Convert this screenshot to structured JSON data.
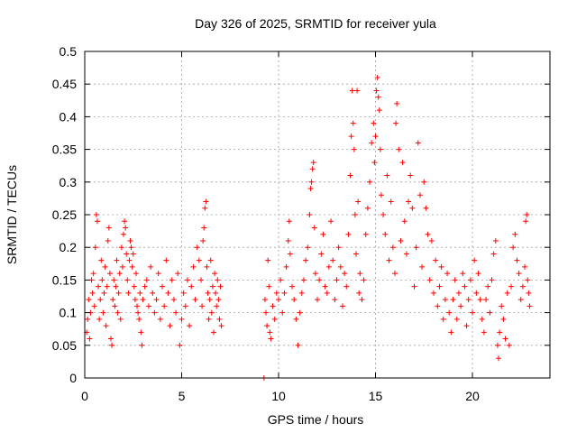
{
  "chart_data": {
    "type": "scatter",
    "title": "Day 326 of 2025, SRMTID for receiver yula",
    "xlabel": "GPS time / hours",
    "ylabel": "SRMTID / TECUs",
    "xlim": [
      0,
      24
    ],
    "ylim": [
      0,
      0.5
    ],
    "xticks": [
      0,
      5,
      10,
      15,
      20
    ],
    "xtick_labels": [
      "0",
      "5",
      "10",
      "15",
      "20"
    ],
    "yticks": [
      0,
      0.05,
      0.1,
      0.15,
      0.2,
      0.25,
      0.3,
      0.35,
      0.4,
      0.45,
      0.5
    ],
    "ytick_labels": [
      "0",
      "0.05",
      "0.1",
      "0.15",
      "0.2",
      "0.25",
      "0.3",
      "0.35",
      "0.4",
      "0.45",
      "0.5"
    ],
    "grid": true,
    "marker": "+",
    "color": "#ff0000",
    "series": [
      {
        "name": "SRMTID",
        "points": [
          [
            0.1,
            0.07
          ],
          [
            0.15,
            0.09
          ],
          [
            0.2,
            0.12
          ],
          [
            0.25,
            0.06
          ],
          [
            0.3,
            0.1
          ],
          [
            0.35,
            0.15
          ],
          [
            0.4,
            0.13
          ],
          [
            0.45,
            0.16
          ],
          [
            0.5,
            0.11
          ],
          [
            0.55,
            0.2
          ],
          [
            0.6,
            0.25
          ],
          [
            0.65,
            0.24
          ],
          [
            0.7,
            0.14
          ],
          [
            0.75,
            0.09
          ],
          [
            0.8,
            0.12
          ],
          [
            0.85,
            0.18
          ],
          [
            0.9,
            0.15
          ],
          [
            0.95,
            0.1
          ],
          [
            1.0,
            0.13
          ],
          [
            1.05,
            0.17
          ],
          [
            1.1,
            0.08
          ],
          [
            1.15,
            0.14
          ],
          [
            1.2,
            0.21
          ],
          [
            1.25,
            0.23
          ],
          [
            1.3,
            0.16
          ],
          [
            1.35,
            0.06
          ],
          [
            1.4,
            0.05
          ],
          [
            1.45,
            0.12
          ],
          [
            1.5,
            0.15
          ],
          [
            1.55,
            0.11
          ],
          [
            1.6,
            0.14
          ],
          [
            1.65,
            0.18
          ],
          [
            1.7,
            0.1
          ],
          [
            1.75,
            0.13
          ],
          [
            1.8,
            0.16
          ],
          [
            1.85,
            0.09
          ],
          [
            1.9,
            0.2
          ],
          [
            1.95,
            0.17
          ],
          [
            2.0,
            0.22
          ],
          [
            2.05,
            0.24
          ],
          [
            2.1,
            0.23
          ],
          [
            2.15,
            0.19
          ],
          [
            2.2,
            0.15
          ],
          [
            2.25,
            0.13
          ],
          [
            2.3,
            0.18
          ],
          [
            2.35,
            0.21
          ],
          [
            2.4,
            0.2
          ],
          [
            2.45,
            0.17
          ],
          [
            2.5,
            0.19
          ],
          [
            2.55,
            0.14
          ],
          [
            2.6,
            0.12
          ],
          [
            2.65,
            0.16
          ],
          [
            2.7,
            0.11
          ],
          [
            2.75,
            0.1
          ],
          [
            2.8,
            0.09
          ],
          [
            2.85,
            0.13
          ],
          [
            2.9,
            0.07
          ],
          [
            2.95,
            0.05
          ],
          [
            3.0,
            0.12
          ],
          [
            3.1,
            0.14
          ],
          [
            3.2,
            0.15
          ],
          [
            3.3,
            0.11
          ],
          [
            3.4,
            0.17
          ],
          [
            3.5,
            0.13
          ],
          [
            3.6,
            0.1
          ],
          [
            3.7,
            0.12
          ],
          [
            3.8,
            0.16
          ],
          [
            3.9,
            0.09
          ],
          [
            4.0,
            0.14
          ],
          [
            4.1,
            0.11
          ],
          [
            4.2,
            0.18
          ],
          [
            4.3,
            0.13
          ],
          [
            4.4,
            0.08
          ],
          [
            4.5,
            0.15
          ],
          [
            4.6,
            0.12
          ],
          [
            4.7,
            0.1
          ],
          [
            4.8,
            0.16
          ],
          [
            4.9,
            0.05
          ],
          [
            5.0,
            0.09
          ],
          [
            5.1,
            0.13
          ],
          [
            5.2,
            0.11
          ],
          [
            5.3,
            0.15
          ],
          [
            5.4,
            0.08
          ],
          [
            5.5,
            0.14
          ],
          [
            5.6,
            0.17
          ],
          [
            5.7,
            0.12
          ],
          [
            5.8,
            0.2
          ],
          [
            5.9,
            0.18
          ],
          [
            6.0,
            0.15
          ],
          [
            6.05,
            0.11
          ],
          [
            6.1,
            0.21
          ],
          [
            6.15,
            0.23
          ],
          [
            6.2,
            0.26
          ],
          [
            6.25,
            0.27
          ],
          [
            6.3,
            0.17
          ],
          [
            6.35,
            0.13
          ],
          [
            6.4,
            0.09
          ],
          [
            6.45,
            0.12
          ],
          [
            6.5,
            0.18
          ],
          [
            6.55,
            0.1
          ],
          [
            6.6,
            0.14
          ],
          [
            6.65,
            0.07
          ],
          [
            6.7,
            0.16
          ],
          [
            6.75,
            0.13
          ],
          [
            6.8,
            0.11
          ],
          [
            6.85,
            0.15
          ],
          [
            6.9,
            0.12
          ],
          [
            6.95,
            0.09
          ],
          [
            7.0,
            0.14
          ],
          [
            7.05,
            0.08
          ],
          [
            9.25,
            0.0
          ],
          [
            9.3,
            0.12
          ],
          [
            9.35,
            0.1
          ],
          [
            9.4,
            0.08
          ],
          [
            9.45,
            0.18
          ],
          [
            9.5,
            0.14
          ],
          [
            9.55,
            0.07
          ],
          [
            9.6,
            0.06
          ],
          [
            9.7,
            0.11
          ],
          [
            9.8,
            0.09
          ],
          [
            9.9,
            0.13
          ],
          [
            10.0,
            0.12
          ],
          [
            10.1,
            0.15
          ],
          [
            10.2,
            0.1
          ],
          [
            10.3,
            0.13
          ],
          [
            10.4,
            0.17
          ],
          [
            10.5,
            0.21
          ],
          [
            10.55,
            0.24
          ],
          [
            10.6,
            0.19
          ],
          [
            10.7,
            0.14
          ],
          [
            10.8,
            0.12
          ],
          [
            10.9,
            0.09
          ],
          [
            11.0,
            0.05
          ],
          [
            11.1,
            0.1
          ],
          [
            11.2,
            0.13
          ],
          [
            11.3,
            0.15
          ],
          [
            11.4,
            0.18
          ],
          [
            11.5,
            0.2
          ],
          [
            11.6,
            0.25
          ],
          [
            11.65,
            0.29
          ],
          [
            11.7,
            0.3
          ],
          [
            11.75,
            0.32
          ],
          [
            11.8,
            0.33
          ],
          [
            11.85,
            0.23
          ],
          [
            11.9,
            0.16
          ],
          [
            12.0,
            0.12
          ],
          [
            12.1,
            0.15
          ],
          [
            12.2,
            0.19
          ],
          [
            12.3,
            0.22
          ],
          [
            12.4,
            0.14
          ],
          [
            12.5,
            0.13
          ],
          [
            12.6,
            0.17
          ],
          [
            12.7,
            0.24
          ],
          [
            12.8,
            0.18
          ],
          [
            12.9,
            0.12
          ],
          [
            13.0,
            0.15
          ],
          [
            13.1,
            0.2
          ],
          [
            13.2,
            0.17
          ],
          [
            13.3,
            0.11
          ],
          [
            13.4,
            0.16
          ],
          [
            13.5,
            0.14
          ],
          [
            13.6,
            0.22
          ],
          [
            13.7,
            0.31
          ],
          [
            13.75,
            0.37
          ],
          [
            13.8,
            0.44
          ],
          [
            13.85,
            0.39
          ],
          [
            13.9,
            0.35
          ],
          [
            13.95,
            0.25
          ],
          [
            14.0,
            0.19
          ],
          [
            14.05,
            0.44
          ],
          [
            14.1,
            0.27
          ],
          [
            14.15,
            0.13
          ],
          [
            14.2,
            0.16
          ],
          [
            14.3,
            0.12
          ],
          [
            14.4,
            0.15
          ],
          [
            14.5,
            0.22
          ],
          [
            14.6,
            0.26
          ],
          [
            14.7,
            0.3
          ],
          [
            14.8,
            0.36
          ],
          [
            14.9,
            0.39
          ],
          [
            14.95,
            0.33
          ],
          [
            15.0,
            0.37
          ],
          [
            15.05,
            0.44
          ],
          [
            15.1,
            0.46
          ],
          [
            15.15,
            0.43
          ],
          [
            15.2,
            0.41
          ],
          [
            15.25,
            0.35
          ],
          [
            15.3,
            0.28
          ],
          [
            15.4,
            0.25
          ],
          [
            15.5,
            0.22
          ],
          [
            15.6,
            0.31
          ],
          [
            15.7,
            0.18
          ],
          [
            15.8,
            0.27
          ],
          [
            15.9,
            0.2
          ],
          [
            16.0,
            0.16
          ],
          [
            16.05,
            0.39
          ],
          [
            16.1,
            0.42
          ],
          [
            16.2,
            0.35
          ],
          [
            16.3,
            0.21
          ],
          [
            16.4,
            0.33
          ],
          [
            16.5,
            0.24
          ],
          [
            16.6,
            0.19
          ],
          [
            16.7,
            0.27
          ],
          [
            16.8,
            0.31
          ],
          [
            16.9,
            0.26
          ],
          [
            17.0,
            0.14
          ],
          [
            17.1,
            0.2
          ],
          [
            17.2,
            0.36
          ],
          [
            17.3,
            0.28
          ],
          [
            17.4,
            0.17
          ],
          [
            17.5,
            0.3
          ],
          [
            17.6,
            0.26
          ],
          [
            17.7,
            0.22
          ],
          [
            17.8,
            0.15
          ],
          [
            17.9,
            0.21
          ],
          [
            18.0,
            0.13
          ],
          [
            18.1,
            0.18
          ],
          [
            18.2,
            0.11
          ],
          [
            18.3,
            0.14
          ],
          [
            18.4,
            0.17
          ],
          [
            18.5,
            0.09
          ],
          [
            18.6,
            0.12
          ],
          [
            18.7,
            0.16
          ],
          [
            18.8,
            0.1
          ],
          [
            18.9,
            0.07
          ],
          [
            19.0,
            0.12
          ],
          [
            19.1,
            0.15
          ],
          [
            19.2,
            0.09
          ],
          [
            19.3,
            0.13
          ],
          [
            19.4,
            0.11
          ],
          [
            19.5,
            0.16
          ],
          [
            19.6,
            0.14
          ],
          [
            19.7,
            0.08
          ],
          [
            19.8,
            0.12
          ],
          [
            19.9,
            0.15
          ],
          [
            20.0,
            0.1
          ],
          [
            20.1,
            0.18
          ],
          [
            20.2,
            0.13
          ],
          [
            20.3,
            0.16
          ],
          [
            20.4,
            0.12
          ],
          [
            20.5,
            0.09
          ],
          [
            20.6,
            0.07
          ],
          [
            20.7,
            0.12
          ],
          [
            20.8,
            0.14
          ],
          [
            20.9,
            0.1
          ],
          [
            21.0,
            0.15
          ],
          [
            21.1,
            0.19
          ],
          [
            21.2,
            0.21
          ],
          [
            21.3,
            0.05
          ],
          [
            21.35,
            0.03
          ],
          [
            21.4,
            0.07
          ],
          [
            21.5,
            0.11
          ],
          [
            21.6,
            0.09
          ],
          [
            21.7,
            0.06
          ],
          [
            21.8,
            0.13
          ],
          [
            21.9,
            0.05
          ],
          [
            22.0,
            0.14
          ],
          [
            22.1,
            0.2
          ],
          [
            22.2,
            0.22
          ],
          [
            22.3,
            0.18
          ],
          [
            22.4,
            0.16
          ],
          [
            22.5,
            0.12
          ],
          [
            22.6,
            0.14
          ],
          [
            22.7,
            0.17
          ],
          [
            22.75,
            0.24
          ],
          [
            22.8,
            0.25
          ],
          [
            22.85,
            0.15
          ],
          [
            22.9,
            0.13
          ],
          [
            22.95,
            0.11
          ]
        ]
      }
    ]
  }
}
